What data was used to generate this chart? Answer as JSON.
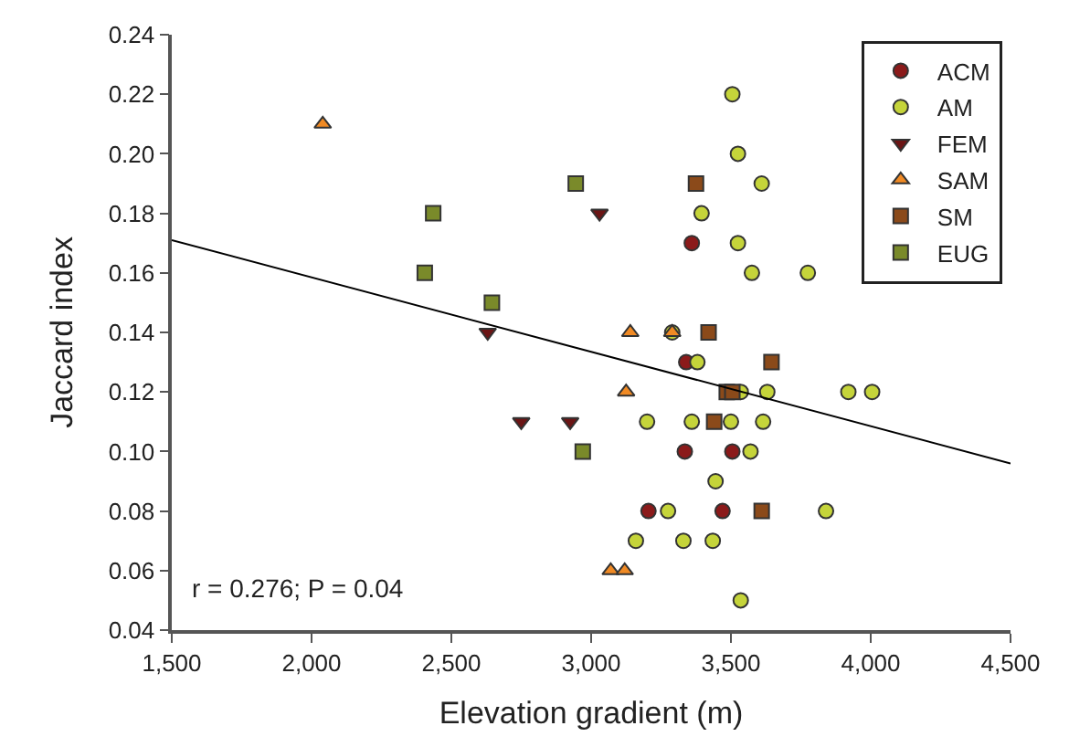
{
  "chart_data": {
    "type": "scatter",
    "xlabel": "Elevation gradient (m)",
    "ylabel": "Jaccard index",
    "xlim": [
      1500,
      4500
    ],
    "xticks": [
      {
        "value": 1500,
        "label": "1,500"
      },
      {
        "value": 2000,
        "label": "2,000"
      },
      {
        "value": 2500,
        "label": "2,500"
      },
      {
        "value": 3000,
        "label": "3,000"
      },
      {
        "value": 3500,
        "label": "3,500"
      },
      {
        "value": 4000,
        "label": "4,000"
      },
      {
        "value": 4500,
        "label": "4,500"
      }
    ],
    "ylim": [
      0.04,
      0.24
    ],
    "yticks": [
      {
        "value": 0.04,
        "label": "0.04"
      },
      {
        "value": 0.06,
        "label": "0.06"
      },
      {
        "value": 0.08,
        "label": "0.08"
      },
      {
        "value": 0.1,
        "label": "0.10"
      },
      {
        "value": 0.12,
        "label": "0.12"
      },
      {
        "value": 0.14,
        "label": "0.14"
      },
      {
        "value": 0.16,
        "label": "0.16"
      },
      {
        "value": 0.18,
        "label": "0.18"
      },
      {
        "value": 0.2,
        "label": "0.20"
      },
      {
        "value": 0.22,
        "label": "0.22"
      },
      {
        "value": 0.24,
        "label": "0.24"
      }
    ],
    "legend": "top right",
    "series": [
      {
        "name": "ACM",
        "color": "#8b1a1a",
        "marker": "circle",
        "x": [
          3360,
          3340,
          3335,
          3505,
          3205,
          3470
        ],
        "values": [
          0.17,
          0.13,
          0.1,
          0.1,
          0.08,
          0.08
        ]
      },
      {
        "name": "AM",
        "color": "#c5d43a",
        "marker": "circle",
        "x": [
          3505,
          3525,
          3610,
          3395,
          3525,
          3575,
          3775,
          3290,
          3380,
          3535,
          3630,
          3920,
          4005,
          3200,
          3360,
          3500,
          3615,
          3570,
          3445,
          3275,
          3840,
          3160,
          3330,
          3435,
          3535
        ],
        "values": [
          0.22,
          0.2,
          0.19,
          0.18,
          0.17,
          0.16,
          0.16,
          0.14,
          0.13,
          0.12,
          0.12,
          0.12,
          0.12,
          0.11,
          0.11,
          0.11,
          0.11,
          0.1,
          0.09,
          0.08,
          0.08,
          0.07,
          0.07,
          0.07,
          0.05
        ]
      },
      {
        "name": "FEM",
        "color": "#6b1515",
        "marker": "triangle-down",
        "x": [
          3030,
          2630,
          2750,
          2925
        ],
        "values": [
          0.18,
          0.14,
          0.11,
          0.11
        ]
      },
      {
        "name": "SAM",
        "color": "#f08a24",
        "marker": "triangle",
        "x": [
          2040,
          3140,
          3290,
          3125,
          3070,
          3120
        ],
        "values": [
          0.21,
          0.14,
          0.14,
          0.12,
          0.06,
          0.06
        ]
      },
      {
        "name": "SM",
        "color": "#8b4a1a",
        "marker": "square",
        "x": [
          3375,
          3420,
          3645,
          3485,
          3505,
          3440,
          3610
        ],
        "values": [
          0.19,
          0.14,
          0.13,
          0.12,
          0.12,
          0.11,
          0.08
        ]
      },
      {
        "name": "EUG",
        "color": "#7a8a2a",
        "marker": "square",
        "x": [
          2435,
          2405,
          2645,
          2945,
          2970
        ],
        "values": [
          0.18,
          0.16,
          0.15,
          0.19,
          0.1
        ]
      },
      {
        "type": "line",
        "color": "#000000",
        "marker": "none",
        "line_style": "solid",
        "x": [
          1500,
          4500
        ],
        "values": [
          0.171,
          0.096
        ]
      }
    ],
    "annotations": [
      "r = 0.276; P = 0.04"
    ]
  }
}
